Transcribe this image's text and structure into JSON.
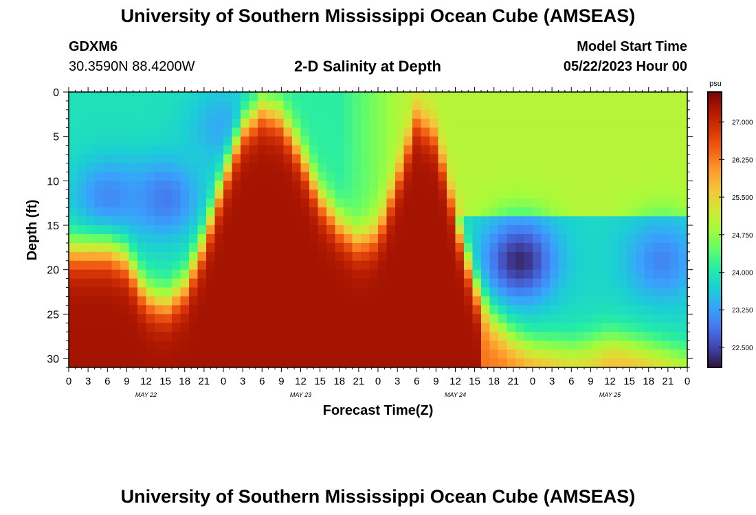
{
  "header": {
    "title": "University of Southern Mississippi Ocean Cube (AMSEAS)",
    "station": "GDXM6",
    "coordinates": "30.3590N  88.4200W",
    "subtitle": "2-D Salinity at Depth",
    "model_start_label": "Model Start Time",
    "model_start_value": "05/22/2023 Hour 00"
  },
  "footer": {
    "title": "University of Southern Mississippi Ocean Cube (AMSEAS)"
  },
  "colorbar": {
    "unit": "psu",
    "ticks": [
      "27.000",
      "26.250",
      "25.500",
      "24.750",
      "24.000",
      "23.250",
      "22.500"
    ],
    "tick_values": [
      27.0,
      26.25,
      25.5,
      24.75,
      24.0,
      23.25,
      22.5
    ],
    "range": [
      22.1,
      27.6
    ],
    "colors": [
      "#30123b",
      "#4145ab",
      "#4675ed",
      "#39a2fc",
      "#1bcfd4",
      "#24eca6",
      "#61fc6c",
      "#a4fc3b",
      "#d1e834",
      "#f3c63a",
      "#fe9b2d",
      "#f36315",
      "#d93806",
      "#b11901",
      "#7a0402"
    ]
  },
  "chart_data": {
    "type": "heatmap",
    "title": "2-D Salinity at Depth",
    "xlabel": "Forecast Time(Z)",
    "ylabel": "Depth (ft)",
    "x_range_hours": [
      0,
      96
    ],
    "y_range_ft": [
      0,
      31
    ],
    "x_tick_labels": [
      "0",
      "3",
      "6",
      "9",
      "12",
      "15",
      "18",
      "21",
      "0",
      "3",
      "6",
      "9",
      "12",
      "15",
      "18",
      "21",
      "0",
      "3",
      "6",
      "9",
      "12",
      "15",
      "18",
      "21",
      "0",
      "3",
      "6",
      "9",
      "12",
      "15",
      "18",
      "21",
      "0"
    ],
    "y_tick_labels": [
      "0",
      "5",
      "10",
      "15",
      "20",
      "25",
      "30"
    ],
    "y_tick_values": [
      0,
      5,
      10,
      15,
      20,
      25,
      30
    ],
    "day_labels": [
      "MAY 22",
      "MAY 23",
      "MAY 24",
      "MAY 25"
    ],
    "day_label_hours": [
      12,
      36,
      60,
      84
    ],
    "unit": "psu",
    "interface_depth_ft": [
      [
        0,
        18
      ],
      [
        6,
        18
      ],
      [
        9,
        19
      ],
      [
        12,
        23
      ],
      [
        15,
        24
      ],
      [
        18,
        22
      ],
      [
        21,
        17
      ],
      [
        24,
        10
      ],
      [
        27,
        4
      ],
      [
        30,
        2
      ],
      [
        33,
        3
      ],
      [
        36,
        7
      ],
      [
        39,
        12
      ],
      [
        42,
        15
      ],
      [
        45,
        17
      ],
      [
        48,
        16
      ],
      [
        51,
        10
      ],
      [
        54,
        3
      ],
      [
        57,
        5
      ],
      [
        60,
        14
      ],
      [
        63,
        22
      ],
      [
        66,
        26
      ],
      [
        69,
        28
      ],
      [
        72,
        29
      ],
      [
        78,
        29
      ],
      [
        84,
        28
      ],
      [
        90,
        29
      ],
      [
        96,
        30
      ]
    ],
    "lower_layer_salinity_psu": 27.3,
    "low_salinity_cores": [
      {
        "hour": 6,
        "depth_ft": 12,
        "salinity_psu": 23.0
      },
      {
        "hour": 15,
        "depth_ft": 12,
        "salinity_psu": 22.9
      },
      {
        "hour": 24,
        "depth_ft": 4,
        "salinity_psu": 23.3
      },
      {
        "hour": 70,
        "depth_ft": 19,
        "salinity_psu": 22.2
      },
      {
        "hour": 92,
        "depth_ft": 19,
        "salinity_psu": 23.0
      }
    ]
  }
}
